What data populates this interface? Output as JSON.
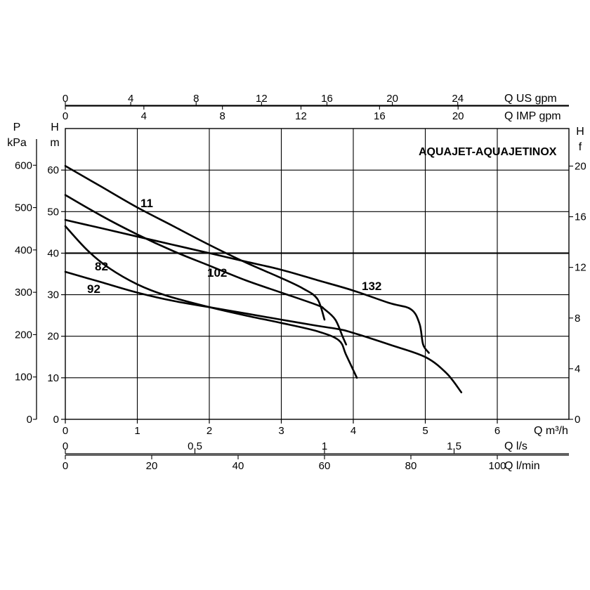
{
  "chart_data": {
    "type": "line",
    "title": "AQUAJET-AQUAJETINOX",
    "grid": true,
    "x": {
      "label": "Q m³/h",
      "range": [
        0,
        7
      ],
      "ticks": [
        "0",
        "1",
        "2",
        "3",
        "4",
        "5",
        "6"
      ]
    },
    "x_secondary": [
      {
        "label": "Q US gpm",
        "ticks": [
          "0",
          "4",
          "8",
          "12",
          "16",
          "20",
          "24"
        ]
      },
      {
        "label": "Q IMP gpm",
        "ticks": [
          "0",
          "4",
          "8",
          "12",
          "16",
          "20"
        ]
      },
      {
        "label": "Q l/s",
        "ticks": [
          "0",
          "0,5",
          "1",
          "1,5"
        ]
      },
      {
        "label": "Q l/min",
        "ticks": [
          "0",
          "20",
          "40",
          "60",
          "80",
          "100"
        ]
      }
    ],
    "y": {
      "label": "H m",
      "range": [
        0,
        70
      ],
      "ticks": [
        "0",
        "10",
        "20",
        "30",
        "40",
        "50",
        "60"
      ]
    },
    "y_secondary_left": {
      "label_top": "P",
      "label_bottom": "kPa",
      "ticks": [
        "0",
        "100",
        "200",
        "300",
        "400",
        "500",
        "600"
      ]
    },
    "y_secondary_right": {
      "label_top": "H",
      "label_bottom": "f",
      "ticks": [
        "0",
        "4",
        "8",
        "12",
        "16",
        "20"
      ]
    },
    "series": [
      {
        "name": "11",
        "x": [
          0,
          0.5,
          1.0,
          1.5,
          2.0,
          2.5,
          3.0,
          3.3,
          3.5,
          3.6
        ],
        "y": [
          61,
          56,
          51,
          46.5,
          42,
          37.8,
          34,
          31.5,
          29,
          24
        ]
      },
      {
        "name": "82",
        "x": [
          0,
          0.3,
          0.6,
          1.0,
          1.4,
          2.0,
          2.5,
          3.0,
          3.5,
          3.8,
          3.9,
          4.05
        ],
        "y": [
          46.5,
          40.8,
          36.5,
          32.5,
          29.8,
          27,
          25,
          23.2,
          21.2,
          19,
          15.5,
          10
        ]
      },
      {
        "name": "92",
        "x": [
          0,
          0.5,
          1.0,
          1.5,
          2.0,
          2.5,
          3.0,
          3.5,
          3.8,
          4.0,
          4.5,
          5.0,
          5.3,
          5.5
        ],
        "y": [
          35.5,
          33,
          30.5,
          28.5,
          27,
          25.5,
          24,
          22.5,
          21.7,
          20.8,
          18,
          15,
          11,
          6.5
        ]
      },
      {
        "name": "102",
        "x": [
          0,
          0.5,
          1.0,
          1.5,
          2.0,
          2.5,
          3.0,
          3.5,
          3.6,
          3.75,
          3.85,
          3.9
        ],
        "y": [
          54,
          49,
          44.5,
          40.5,
          37,
          33.5,
          30.5,
          27.5,
          26.5,
          24,
          20,
          18
        ]
      },
      {
        "name": "132",
        "x": [
          0,
          0.5,
          1.0,
          1.5,
          2.0,
          2.5,
          3.0,
          3.5,
          4.0,
          4.5,
          4.8,
          4.92,
          4.97,
          5.05
        ],
        "y": [
          48,
          46,
          44,
          42,
          40,
          38,
          36,
          33.5,
          31,
          28,
          26.5,
          23,
          18,
          16
        ]
      }
    ],
    "annotations": [
      "11",
      "82",
      "92",
      "102",
      "132"
    ]
  }
}
